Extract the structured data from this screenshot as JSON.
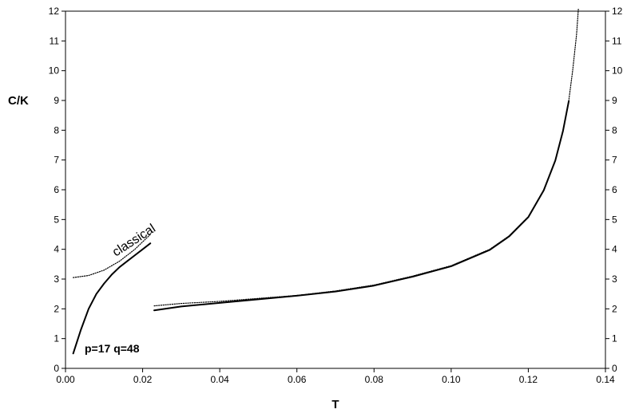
{
  "chart_data": {
    "type": "line",
    "title": "",
    "xlabel": "T",
    "ylabel": "C/K",
    "xlim": [
      0.0,
      0.14
    ],
    "ylim": [
      0,
      12
    ],
    "grid": false,
    "x_ticks": [
      "0.00",
      "0.02",
      "0.04",
      "0.06",
      "0.08",
      "0.10",
      "0.12",
      "0.14"
    ],
    "y_ticks": [
      "0",
      "1",
      "2",
      "3",
      "4",
      "5",
      "6",
      "7",
      "8",
      "9",
      "10",
      "11",
      "12"
    ],
    "annotations": [
      "classical",
      "p=17  q=48"
    ],
    "series": [
      {
        "style": "dotted",
        "x": [
          0.002,
          0.006,
          0.01,
          0.014,
          0.018,
          0.022
        ],
        "y": [
          3.05,
          3.12,
          3.3,
          3.6,
          4.0,
          4.5
        ]
      },
      {
        "style": "solid",
        "x": [
          0.002,
          0.004,
          0.006,
          0.008,
          0.01,
          0.012,
          0.014,
          0.016,
          0.018,
          0.02,
          0.022
        ],
        "y": [
          0.5,
          1.3,
          2.0,
          2.5,
          2.85,
          3.15,
          3.4,
          3.6,
          3.8,
          4.0,
          4.2
        ]
      },
      {
        "style": "dotted",
        "x": [
          0.023,
          0.03,
          0.04,
          0.05,
          0.06,
          0.07,
          0.08,
          0.09,
          0.1,
          0.11,
          0.115,
          0.12,
          0.124,
          0.127,
          0.129,
          0.1305,
          0.1315,
          0.1325,
          0.133
        ],
        "y": [
          2.1,
          2.18,
          2.25,
          2.35,
          2.45,
          2.6,
          2.8,
          3.1,
          3.45,
          4.0,
          4.45,
          5.1,
          6.0,
          7.0,
          8.0,
          9.0,
          10.0,
          11.2,
          12.1
        ]
      },
      {
        "style": "solid",
        "x": [
          0.023,
          0.03,
          0.04,
          0.05,
          0.06,
          0.07,
          0.08,
          0.09,
          0.1,
          0.11,
          0.115,
          0.12,
          0.124,
          0.127,
          0.129,
          0.1305
        ],
        "y": [
          1.95,
          2.08,
          2.2,
          2.32,
          2.44,
          2.58,
          2.78,
          3.08,
          3.43,
          3.98,
          4.43,
          5.08,
          5.98,
          6.98,
          7.98,
          8.98
        ]
      }
    ]
  }
}
